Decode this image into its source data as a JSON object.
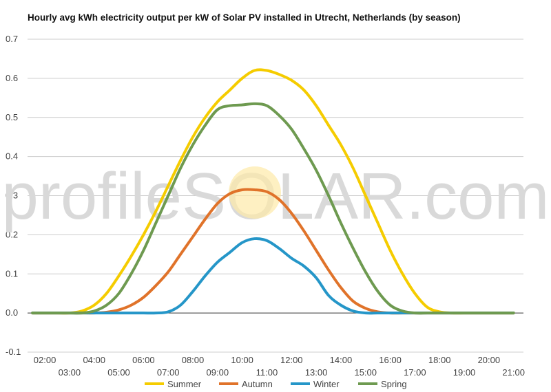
{
  "chart_data": {
    "type": "line",
    "title": "Hourly avg kWh electricity output per kW of Solar PV installed in Utrecht, Netherlands (by season)",
    "watermark": "profileSOLAR.com",
    "xlabel": "",
    "ylabel": "",
    "ylim": [
      -0.1,
      0.7
    ],
    "yticks": [
      "-0.1",
      "0.0",
      "0.1",
      "0.2",
      "0.3",
      "0.4",
      "0.5",
      "0.6",
      "0.7"
    ],
    "x": [
      "01:30",
      "02:00",
      "02:30",
      "03:00",
      "03:30",
      "04:00",
      "04:30",
      "05:00",
      "05:30",
      "06:00",
      "06:30",
      "07:00",
      "07:30",
      "08:00",
      "08:30",
      "09:00",
      "09:30",
      "10:00",
      "10:30",
      "11:00",
      "11:30",
      "12:00",
      "12:30",
      "13:00",
      "13:30",
      "14:00",
      "14:30",
      "15:00",
      "15:30",
      "16:00",
      "16:30",
      "17:00",
      "17:30",
      "18:00",
      "18:30",
      "19:00",
      "19:30",
      "20:00",
      "20:30",
      "21:00"
    ],
    "xticks_top": [
      "02:00",
      "04:00",
      "06:00",
      "08:00",
      "10:00",
      "12:00",
      "14:00",
      "16:00",
      "18:00",
      "20:00"
    ],
    "xticks_bottom": [
      "03:00",
      "05:00",
      "07:00",
      "09:00",
      "11:00",
      "13:00",
      "15:00",
      "17:00",
      "19:00",
      "21:00"
    ],
    "grid": true,
    "legend_position": "bottom",
    "series": [
      {
        "name": "Summer",
        "color": "#f5cc00",
        "values": [
          0,
          0,
          0,
          0,
          0.005,
          0.02,
          0.05,
          0.095,
          0.145,
          0.2,
          0.26,
          0.325,
          0.39,
          0.45,
          0.5,
          0.54,
          0.57,
          0.6,
          0.62,
          0.62,
          0.61,
          0.595,
          0.57,
          0.53,
          0.48,
          0.43,
          0.37,
          0.3,
          0.23,
          0.16,
          0.1,
          0.05,
          0.015,
          0.003,
          0,
          0,
          0,
          0,
          0,
          0
        ]
      },
      {
        "name": "Autumn",
        "color": "#e0732a",
        "values": [
          0,
          0,
          0,
          0,
          0,
          0,
          0.002,
          0.008,
          0.02,
          0.04,
          0.07,
          0.105,
          0.15,
          0.195,
          0.24,
          0.28,
          0.305,
          0.315,
          0.315,
          0.31,
          0.29,
          0.255,
          0.21,
          0.16,
          0.11,
          0.065,
          0.03,
          0.012,
          0.003,
          0,
          0,
          0,
          0,
          0,
          0,
          0,
          0,
          0,
          0,
          0
        ]
      },
      {
        "name": "Winter",
        "color": "#2596c8",
        "values": [
          0,
          0,
          0,
          0,
          0,
          0,
          0,
          0,
          0,
          0,
          0,
          0.003,
          0.02,
          0.055,
          0.095,
          0.13,
          0.155,
          0.18,
          0.19,
          0.185,
          0.165,
          0.14,
          0.12,
          0.09,
          0.045,
          0.02,
          0.005,
          0,
          0,
          0,
          0,
          0,
          0,
          0,
          0,
          0,
          0,
          0,
          0,
          0
        ]
      },
      {
        "name": "Spring",
        "color": "#6e9a50",
        "values": [
          0,
          0,
          0,
          0,
          0,
          0.005,
          0.02,
          0.05,
          0.1,
          0.16,
          0.23,
          0.3,
          0.37,
          0.43,
          0.48,
          0.52,
          0.53,
          0.532,
          0.535,
          0.53,
          0.505,
          0.47,
          0.42,
          0.365,
          0.3,
          0.23,
          0.165,
          0.105,
          0.055,
          0.02,
          0.005,
          0,
          0,
          0,
          0,
          0,
          0,
          0,
          0,
          0
        ]
      }
    ]
  }
}
